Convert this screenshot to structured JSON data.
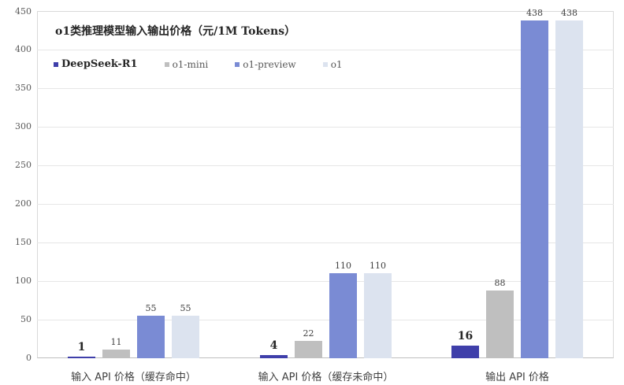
{
  "chart_data": {
    "type": "bar",
    "title": "o1类推理模型输入输出价格（元/1M Tokens）",
    "xlabel": "",
    "ylabel": "",
    "ylim": [
      0,
      450
    ],
    "yticks": [
      0,
      50,
      100,
      150,
      200,
      250,
      300,
      350,
      400,
      450
    ],
    "grid": true,
    "legend_position": "top-left (inside plot, below title)",
    "categories": [
      "输入 API 价格（缓存命中）",
      "输入 API 价格（缓存未命中）",
      "输出 API 价格"
    ],
    "series": [
      {
        "name": "DeepSeek-R1",
        "color": "#3F3FAA",
        "values": [
          1,
          4,
          16
        ],
        "label_bold": true
      },
      {
        "name": "o1-mini",
        "color": "#BFBFBF",
        "values": [
          11,
          22,
          88
        ],
        "label_bold": false
      },
      {
        "name": "o1-preview",
        "color": "#7A8BD4",
        "values": [
          55,
          110,
          438
        ],
        "label_bold": false
      },
      {
        "name": "o1",
        "color": "#DCE3EF",
        "values": [
          55,
          110,
          438
        ],
        "label_bold": false
      }
    ]
  }
}
